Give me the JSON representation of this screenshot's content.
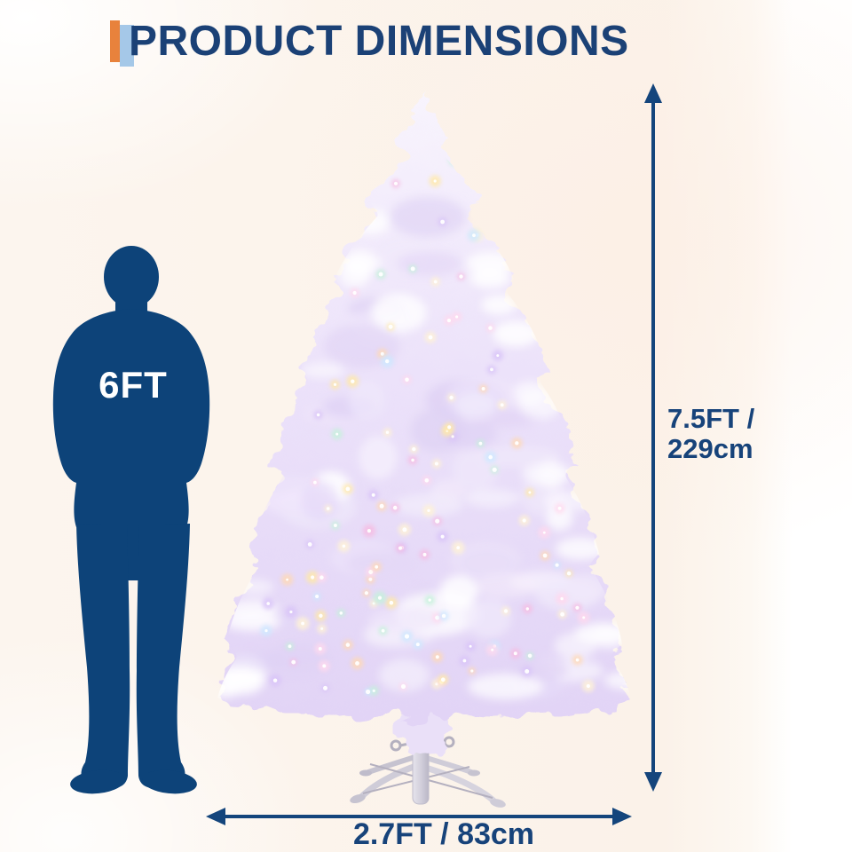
{
  "title": "PRODUCT DIMENSIONS",
  "person": {
    "height_label": "6FT"
  },
  "height_dimension": {
    "line1": "7.5FT /",
    "line2": "229cm"
  },
  "width_dimension": {
    "label": "2.7FT / 83cm"
  },
  "colors": {
    "navy_text": "#1b4176",
    "arrow_navy": "#14457c",
    "silhouette_navy": "#0d4379",
    "accent_orange": "#e8823c",
    "accent_light_blue": "#a5c8e8",
    "background_cream": "#fbf2e9",
    "tree_lavender": "#e6daf7",
    "tree_white": "#f8f4fd",
    "stand_gray": "#cfccd8",
    "light_colors": [
      "#ffe9a8",
      "#ffd9ee",
      "#c4f2da",
      "#d9c4f8",
      "#ffd9b5",
      "#f6bce2",
      "#cde8ff",
      "#fff3d6"
    ]
  }
}
